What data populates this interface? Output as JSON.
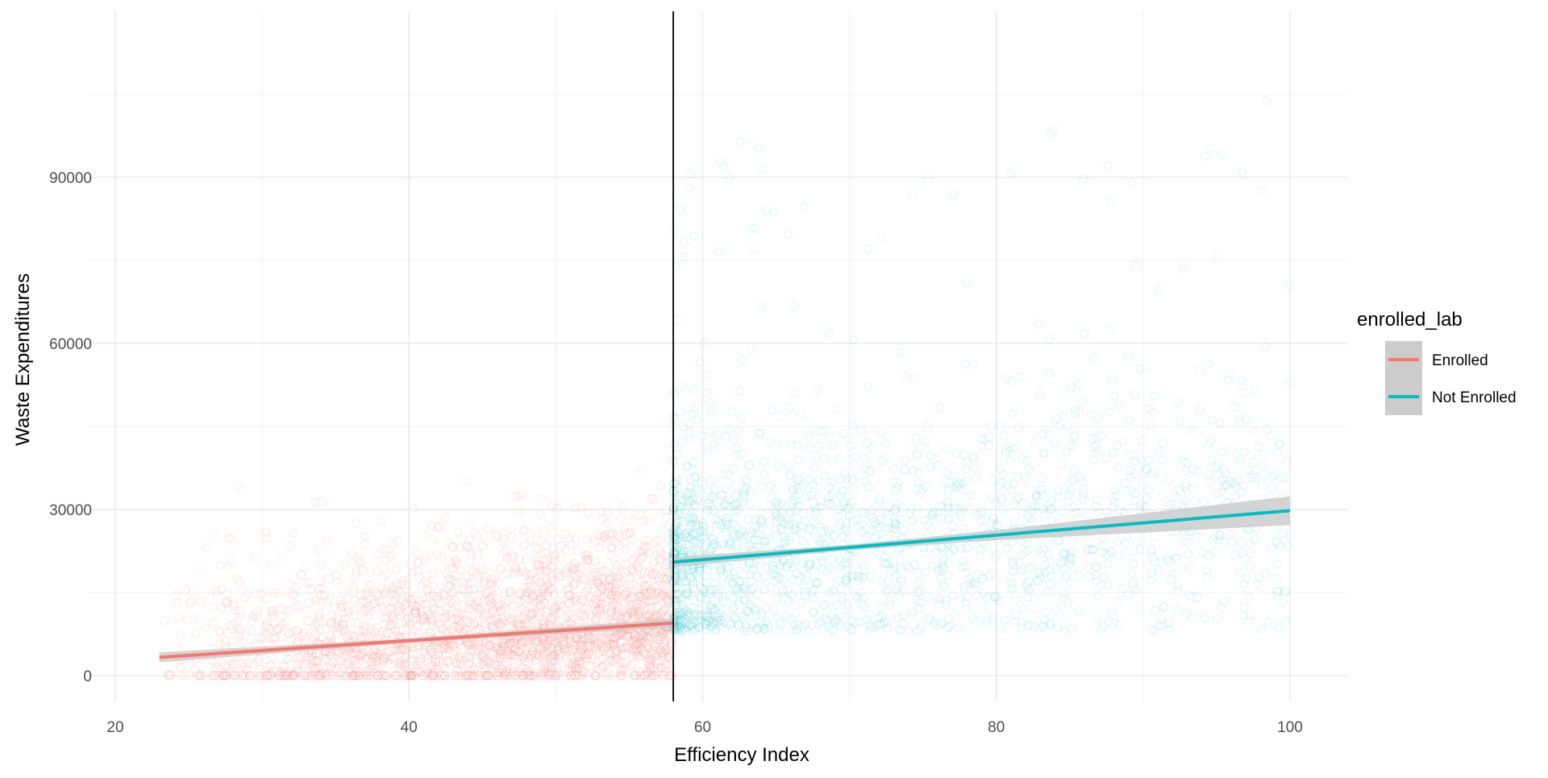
{
  "chart_data": {
    "type": "scatter",
    "xlabel": "Efficiency Index",
    "ylabel": "Waste Expenditures",
    "xlim": [
      16,
      104
    ],
    "ylim": [
      -5000,
      120000
    ],
    "x_ticks": [
      20,
      40,
      60,
      80,
      100
    ],
    "x_tick_labels": [
      "20",
      "40",
      "60",
      "80",
      "100"
    ],
    "y_ticks": [
      0,
      30000,
      60000,
      90000
    ],
    "y_tick_labels": [
      "0",
      "30000",
      "60000",
      "90000"
    ],
    "grid": true,
    "cutoff_x": 58,
    "legend": {
      "title": "enrolled_lab",
      "position": "right",
      "entries": [
        "Enrolled",
        "Not Enrolled"
      ]
    },
    "series": [
      {
        "name": "Enrolled",
        "color": "#F8766D",
        "x_range": [
          23,
          58
        ],
        "fit_line": {
          "x": [
            23,
            58
          ],
          "y": [
            3300,
            9500
          ]
        },
        "ci_halfwidth": {
          "x": [
            23,
            40,
            58
          ],
          "y": [
            900,
            400,
            800
          ]
        }
      },
      {
        "name": "Not Enrolled",
        "color": "#00BFC4",
        "x_range": [
          58,
          100
        ],
        "fit_line": {
          "x": [
            58,
            100
          ],
          "y": [
            20500,
            29800
          ]
        },
        "ci_halfwidth": {
          "x": [
            58,
            70,
            80,
            100
          ],
          "y": [
            900,
            500,
            900,
            2600
          ]
        }
      }
    ],
    "ci_color": "#cccccc",
    "cutoff_color": "#000000"
  }
}
